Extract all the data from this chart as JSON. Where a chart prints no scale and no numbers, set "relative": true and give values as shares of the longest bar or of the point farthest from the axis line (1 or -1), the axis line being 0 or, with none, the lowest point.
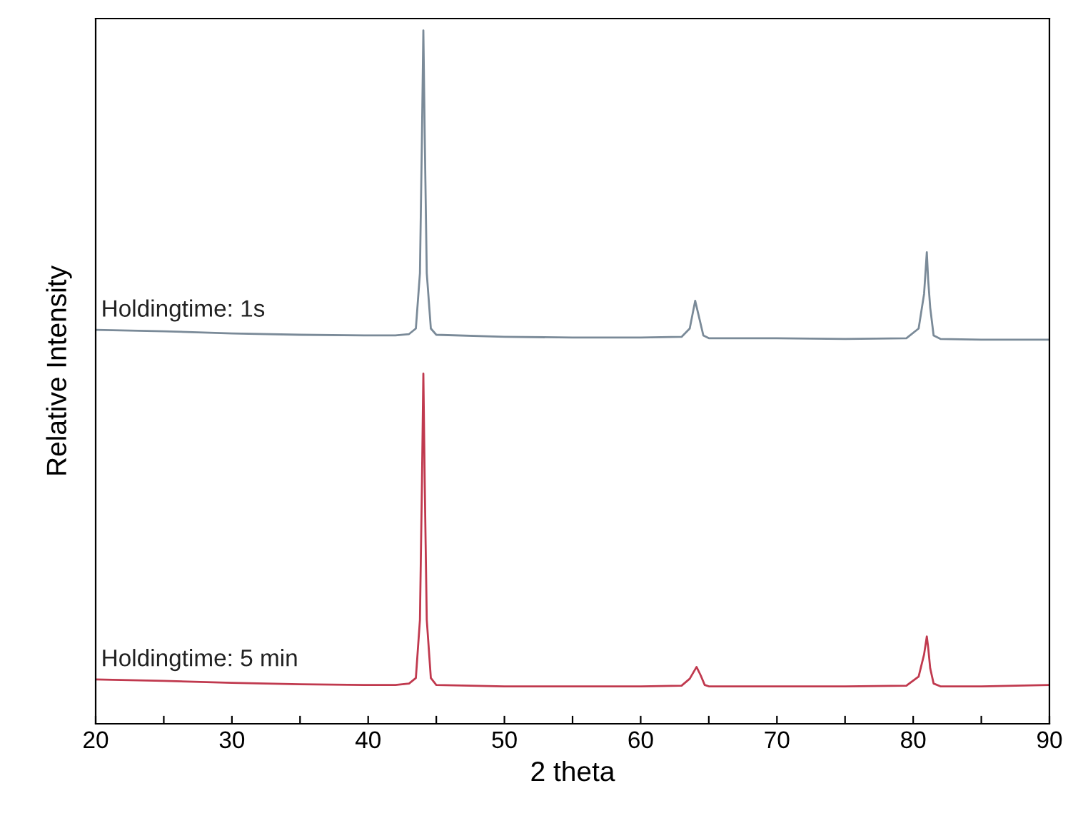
{
  "chart_data": {
    "type": "line",
    "relative": true,
    "xlabel": "2 theta",
    "ylabel": "Relative Intensity",
    "xlim": [
      20,
      90
    ],
    "xticks": [
      20,
      {
        "value": 25,
        "label": null
      },
      30,
      {
        "value": 35,
        "label": null
      },
      40,
      {
        "value": 45,
        "label": null
      },
      50,
      {
        "value": 55,
        "label": null
      },
      60,
      {
        "value": 65,
        "label": null
      },
      70,
      {
        "value": 75,
        "label": null
      },
      80,
      {
        "value": 85,
        "label": null
      },
      90
    ],
    "tick_labels": "x",
    "grid": false,
    "legend": false,
    "marker": "none",
    "line_style": "solid",
    "series": [
      {
        "name": "Holdingtime: 1s",
        "color": "#7a8a98",
        "x": [
          20,
          25,
          30,
          35,
          40,
          42,
          43,
          43.5,
          43.8,
          43.95,
          44.05,
          44.15,
          44.3,
          44.6,
          45,
          50,
          55,
          60,
          63,
          63.6,
          64.0,
          64.3,
          64.6,
          65,
          70,
          75,
          79.5,
          80.4,
          80.8,
          81.0,
          81.1,
          81.25,
          81.5,
          82,
          85,
          90
        ],
        "values": [
          0.568,
          0.566,
          0.563,
          0.561,
          0.56,
          0.56,
          0.562,
          0.57,
          0.65,
          0.85,
          1.0,
          0.85,
          0.65,
          0.57,
          0.561,
          0.558,
          0.557,
          0.557,
          0.558,
          0.57,
          0.61,
          0.585,
          0.56,
          0.556,
          0.556,
          0.555,
          0.556,
          0.57,
          0.62,
          0.68,
          0.64,
          0.6,
          0.56,
          0.555,
          0.554,
          0.554
        ]
      },
      {
        "name": "Holdingtime: 5 min",
        "color": "#c0394e",
        "x": [
          20,
          25,
          30,
          35,
          40,
          42,
          43,
          43.5,
          43.8,
          43.95,
          44.05,
          44.15,
          44.3,
          44.6,
          45,
          50,
          55,
          60,
          63,
          63.6,
          64.1,
          64.4,
          64.7,
          65,
          70,
          75,
          79.5,
          80.4,
          80.8,
          81.0,
          81.1,
          81.25,
          81.5,
          82,
          85,
          90
        ],
        "values": [
          0.064,
          0.062,
          0.059,
          0.057,
          0.056,
          0.056,
          0.058,
          0.066,
          0.15,
          0.35,
          0.505,
          0.35,
          0.15,
          0.066,
          0.056,
          0.054,
          0.054,
          0.054,
          0.055,
          0.065,
          0.082,
          0.07,
          0.056,
          0.054,
          0.054,
          0.054,
          0.055,
          0.068,
          0.1,
          0.126,
          0.11,
          0.08,
          0.058,
          0.054,
          0.054,
          0.056
        ]
      }
    ]
  }
}
